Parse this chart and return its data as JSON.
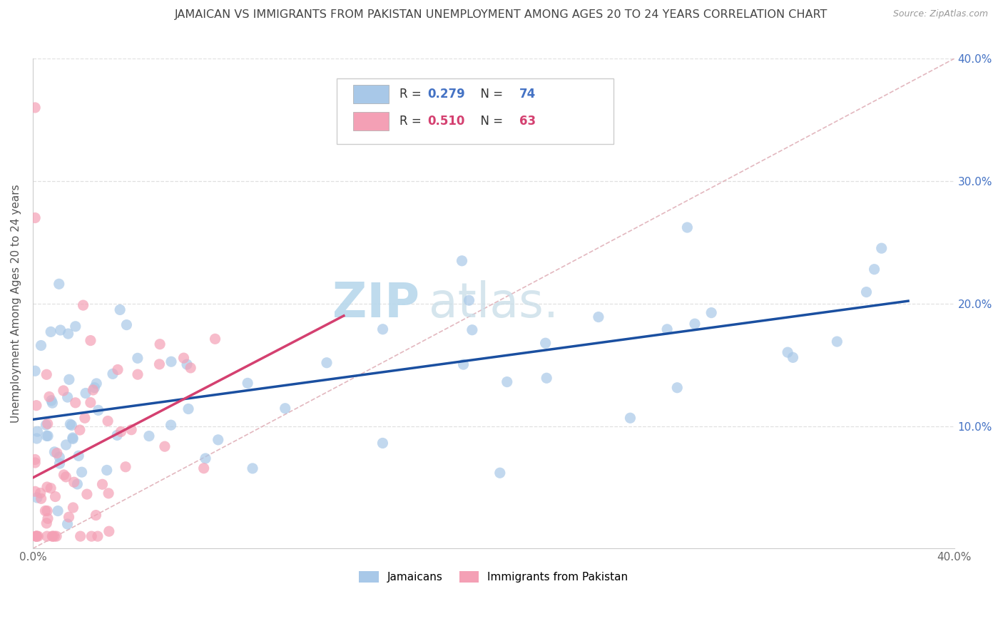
{
  "title": "JAMAICAN VS IMMIGRANTS FROM PAKISTAN UNEMPLOYMENT AMONG AGES 20 TO 24 YEARS CORRELATION CHART",
  "source": "Source: ZipAtlas.com",
  "ylabel": "Unemployment Among Ages 20 to 24 years",
  "xlim": [
    0.0,
    0.4
  ],
  "ylim": [
    0.0,
    0.4
  ],
  "jamaicans_color": "#a8c8e8",
  "pakistan_color": "#f4a0b5",
  "regression_jamaicans_color": "#1a4fa0",
  "regression_pakistan_color": "#d44070",
  "diagonal_color": "#e0b0b8",
  "background_color": "#ffffff",
  "grid_color": "#dddddd",
  "title_color": "#444444",
  "watermark_text": "ZIPatlas.",
  "watermark_color": "#cce4f0",
  "R_jamaicans": 0.279,
  "N_jamaicans": 74,
  "R_pakistan": 0.51,
  "N_pakistan": 63,
  "right_tick_color": "#4472c4",
  "legend_text_color": "#333333",
  "legend_value_color_blue": "#4472c4",
  "legend_value_color_pink": "#d44070"
}
